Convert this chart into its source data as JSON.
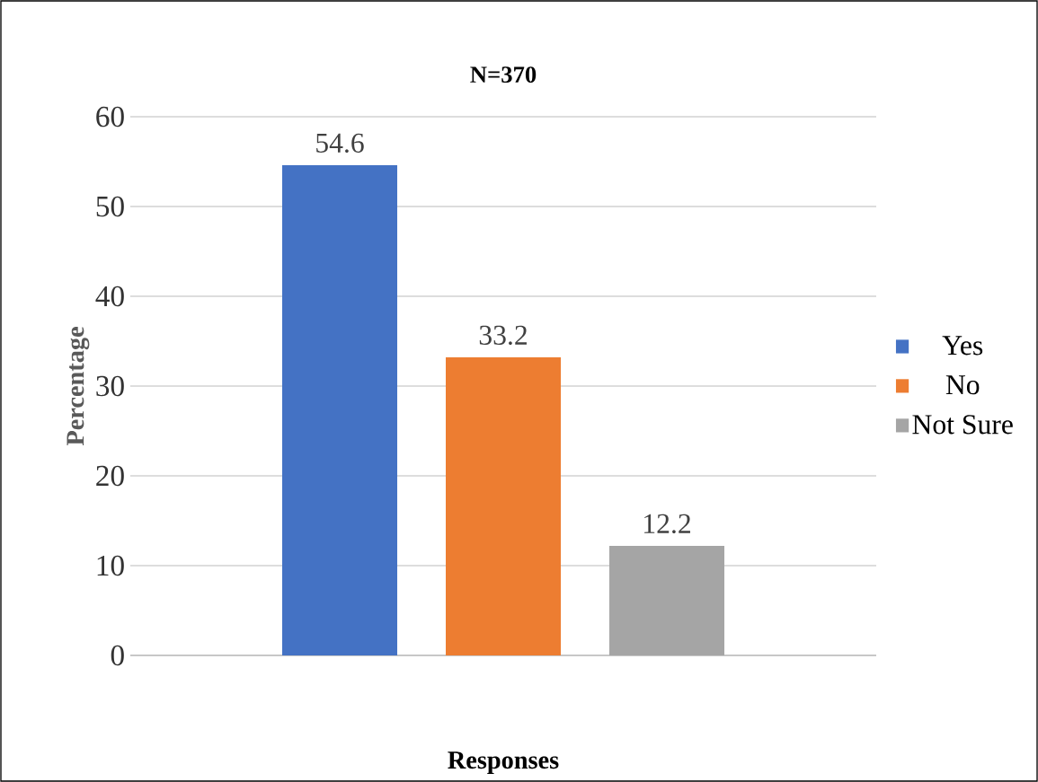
{
  "chart_data": {
    "type": "bar",
    "title": "N=370",
    "xlabel": "Responses",
    "ylabel": "Percentage",
    "categories": [
      null
    ],
    "series": [
      {
        "name": "Yes",
        "color": "#4472c4",
        "values": [
          54.6
        ]
      },
      {
        "name": "No",
        "color": "#ed7d31",
        "values": [
          33.2
        ]
      },
      {
        "name": "Not Sure",
        "color": "#a5a5a5",
        "values": [
          12.2
        ]
      }
    ],
    "ylim": [
      0,
      60
    ],
    "yticks": [
      0,
      10,
      20,
      30,
      40,
      50,
      60
    ],
    "grid": "y",
    "legend": "right",
    "data_labels": true
  }
}
